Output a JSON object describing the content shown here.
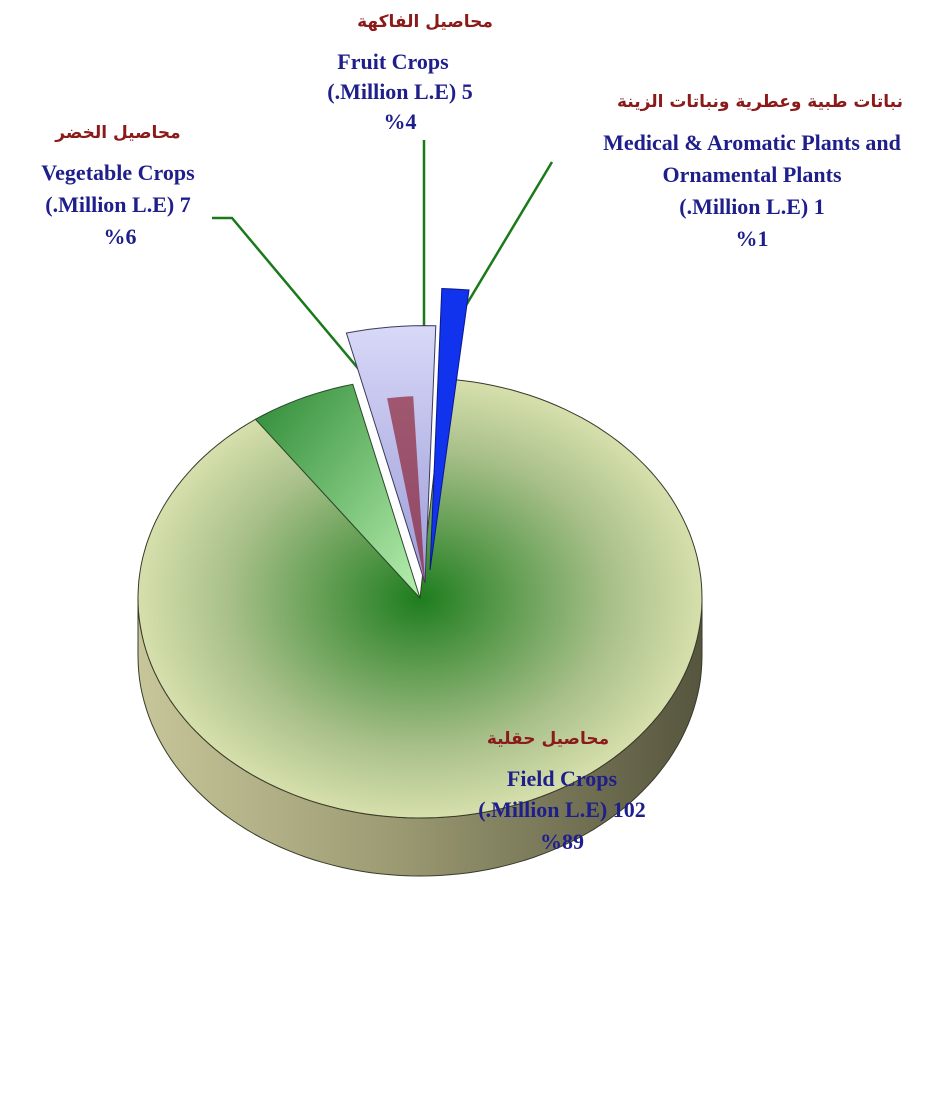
{
  "chart_data": {
    "type": "pie",
    "title": "",
    "slices": [
      {
        "name_ar": "محاصيل حقلية",
        "name_en": "Field Crops",
        "amount_label": "(.Million L.E) 102",
        "percent_label": "%89",
        "value": 102,
        "percent": 89,
        "color": "#f7f6c8"
      },
      {
        "name_ar": "محاصيل الخضر",
        "name_en": "Vegetable Crops",
        "amount_label": "(.Million L.E) 7",
        "percent_label": "%6",
        "value": 7,
        "percent": 6,
        "color": "#3f9a44"
      },
      {
        "name_ar": "محاصيل الفاكهة",
        "name_en": "Fruit Crops",
        "amount_label": "(.Million L.E) 5",
        "percent_label": "%4",
        "value": 5,
        "percent": 4,
        "color": "#c8c8f0"
      },
      {
        "name_ar": "نباتات طبية وعطرية ونباتات الزينة",
        "name_en_lines": [
          "Medical & Aromatic Plants and",
          "Ornamental Plants"
        ],
        "amount_label": "(.Million L.E) 1",
        "percent_label": "%1",
        "value": 1,
        "percent": 1,
        "color": "#1133ee"
      }
    ],
    "unit": "Million L.E",
    "legend": "none"
  }
}
